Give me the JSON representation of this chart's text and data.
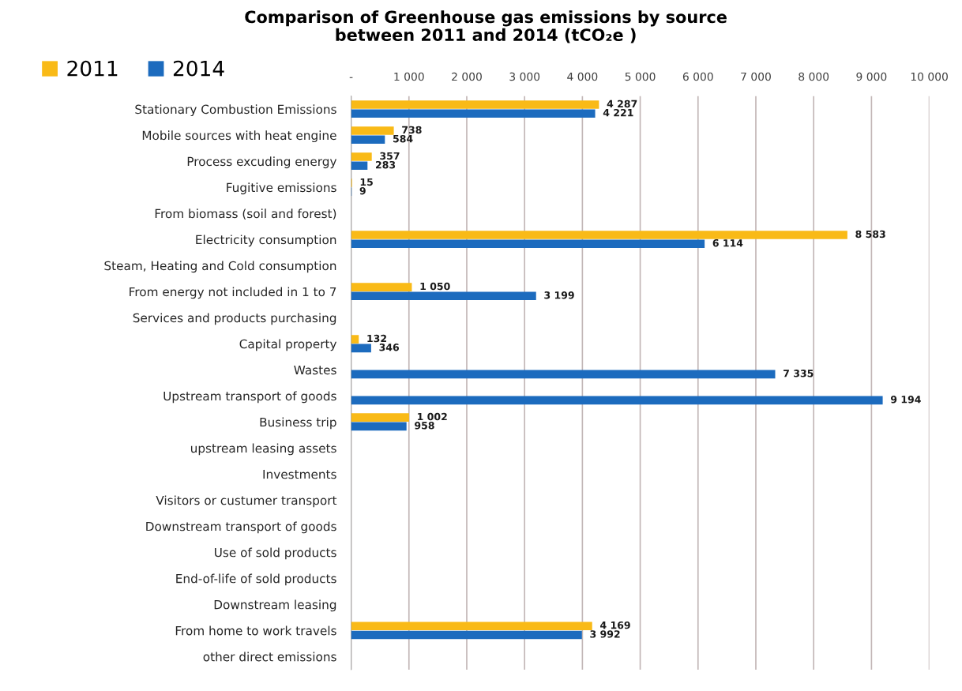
{
  "chart_data": {
    "type": "bar",
    "orientation": "horizontal",
    "title": "Comparison of Greenhouse gas emissions by source\nbetween 2011 and 2014 (tCO₂e )",
    "categories": [
      "Stationary Combustion Emissions",
      "Mobile sources with heat engine",
      "Process excuding energy",
      "Fugitive emissions",
      "From biomass (soil and forest)",
      "Electricity consumption",
      "Steam, Heating and Cold consumption",
      "From energy not included in 1 to 7",
      "Services and products purchasing",
      "Capital property",
      "Wastes",
      "Upstream transport of goods",
      "Business trip",
      "upstream leasing assets",
      "Investments",
      "Visitors or custumer transport",
      "Downstream transport of goods",
      "Use of sold products",
      "End-of-life of sold products",
      "Downstream leasing",
      "From home to work travels",
      "other direct emissions"
    ],
    "series": [
      {
        "name": "2011",
        "color": "#f9ba17",
        "values": [
          4287,
          738,
          357,
          15,
          null,
          8583,
          null,
          1050,
          null,
          132,
          null,
          null,
          1002,
          null,
          null,
          null,
          null,
          null,
          null,
          null,
          4169,
          null
        ],
        "value_labels": [
          "4 287",
          "738",
          "357",
          "15",
          null,
          "8 583",
          null,
          "1 050",
          null,
          "132",
          null,
          null,
          "1 002",
          null,
          null,
          null,
          null,
          null,
          null,
          null,
          "4 169",
          null
        ]
      },
      {
        "name": "2014",
        "color": "#1c6bbe",
        "values": [
          4221,
          584,
          283,
          9,
          null,
          6114,
          null,
          3199,
          null,
          346,
          7335,
          9194,
          958,
          null,
          null,
          null,
          null,
          null,
          null,
          null,
          3992,
          null
        ],
        "value_labels": [
          "4 221",
          "584",
          "283",
          "9",
          null,
          "6 114",
          null,
          "3 199",
          null,
          "346",
          "7 335",
          "9 194",
          "958",
          null,
          null,
          null,
          null,
          null,
          null,
          null,
          "3 992",
          null
        ]
      }
    ],
    "xlim": [
      0,
      10000
    ],
    "xticks": [
      {
        "value": 0,
        "label": "-"
      },
      {
        "value": 1000,
        "label": "1 000"
      },
      {
        "value": 2000,
        "label": "2 000"
      },
      {
        "value": 3000,
        "label": "3 000"
      },
      {
        "value": 4000,
        "label": "4 000"
      },
      {
        "value": 5000,
        "label": "5 000"
      },
      {
        "value": 6000,
        "label": "6 000"
      },
      {
        "value": 7000,
        "label": "7 000"
      },
      {
        "value": 8000,
        "label": "8 000"
      },
      {
        "value": 9000,
        "label": "9 000"
      },
      {
        "value": 10000,
        "label": "10 000"
      }
    ],
    "grid": "x",
    "legend": "top left"
  }
}
